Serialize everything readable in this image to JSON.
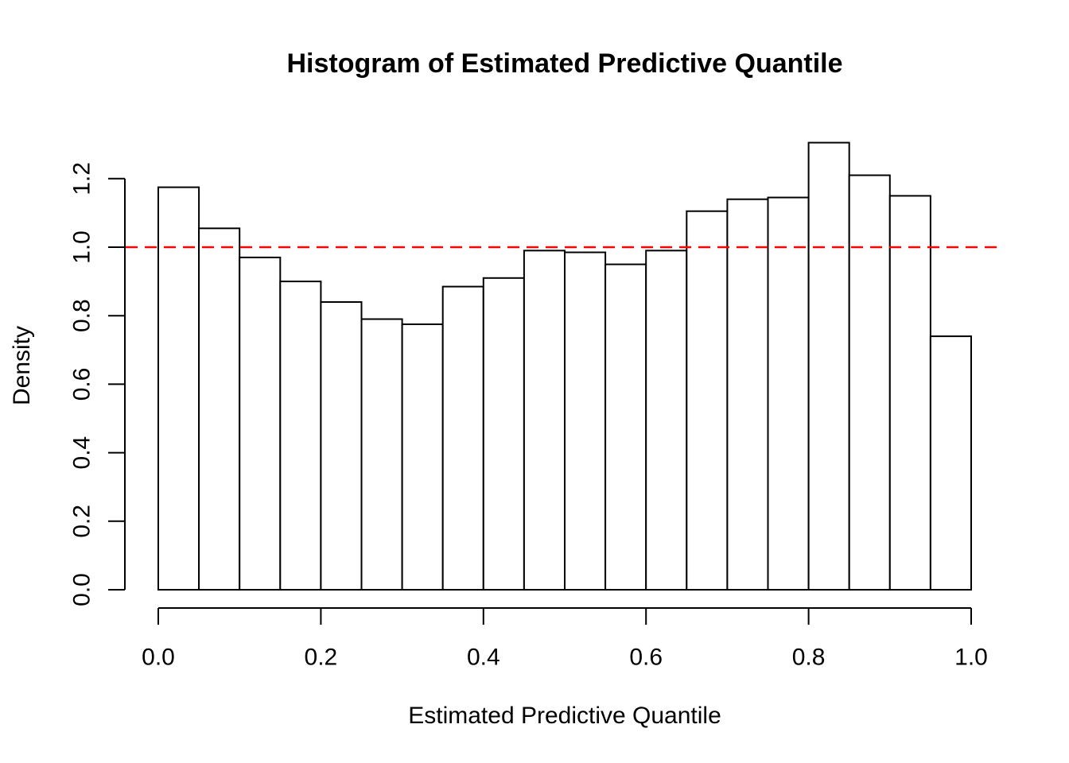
{
  "chart_data": {
    "type": "bar",
    "subtype": "histogram",
    "title": "Histogram of Estimated Predictive Quantile",
    "xlabel": "Estimated Predictive Quantile",
    "ylabel": "Density",
    "xlim": [
      0.0,
      1.0
    ],
    "ylim": [
      0.0,
      1.2
    ],
    "grid": false,
    "legend": null,
    "bin_width": 0.05,
    "bin_edges": [
      0.0,
      0.05,
      0.1,
      0.15,
      0.2,
      0.25,
      0.3,
      0.35,
      0.4,
      0.45,
      0.5,
      0.55,
      0.6,
      0.65,
      0.7,
      0.75,
      0.8,
      0.85,
      0.9,
      0.95,
      1.0
    ],
    "values": [
      1.175,
      1.055,
      0.97,
      0.9,
      0.84,
      0.79,
      0.775,
      0.885,
      0.91,
      0.99,
      0.985,
      0.95,
      0.99,
      1.105,
      1.14,
      1.145,
      1.305,
      1.21,
      1.15,
      0.74
    ],
    "x_ticks": {
      "values": [
        0.0,
        0.2,
        0.4,
        0.6,
        0.8,
        1.0
      ],
      "labels": [
        "0.0",
        "0.2",
        "0.4",
        "0.6",
        "0.8",
        "1.0"
      ]
    },
    "y_ticks": {
      "values": [
        0.0,
        0.2,
        0.4,
        0.6,
        0.8,
        1.0,
        1.2
      ],
      "labels": [
        "0.0",
        "0.2",
        "0.4",
        "0.6",
        "0.8",
        "1.0",
        "1.2"
      ]
    },
    "reference_line": {
      "y": 1.0,
      "line_style": "dashed",
      "color": "#FF0000"
    },
    "style": {
      "bar_fill": "#FFFFFF",
      "bar_stroke": "#000000",
      "axis_color": "#000000",
      "text_color": "#000000",
      "background": "#FFFFFF"
    }
  }
}
